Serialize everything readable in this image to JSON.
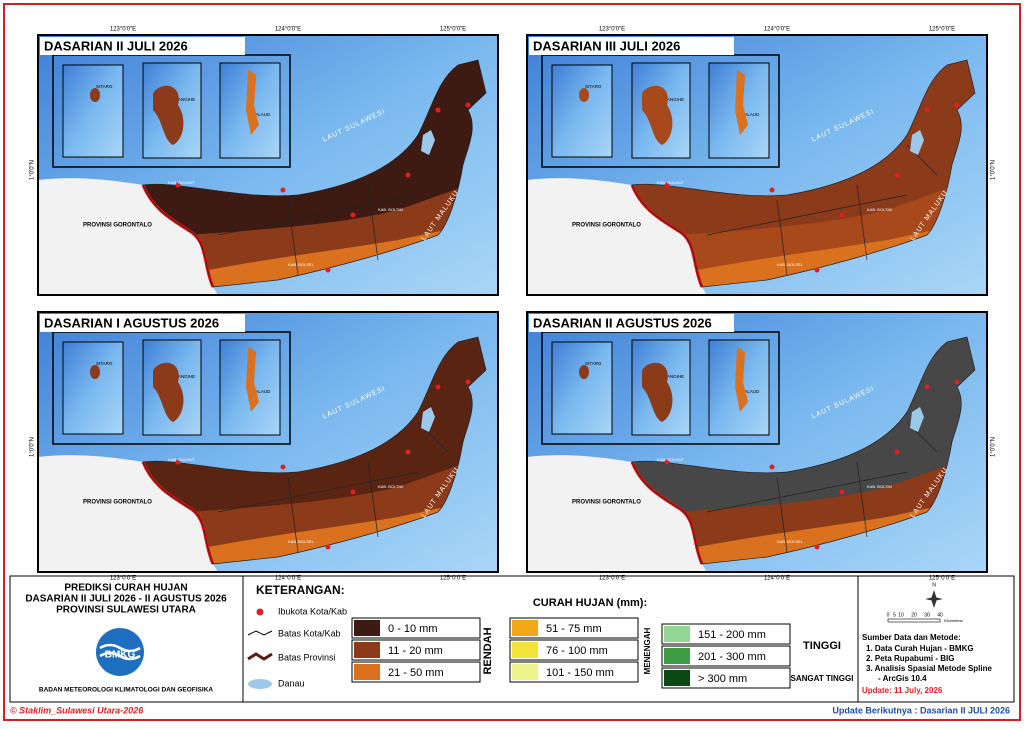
{
  "panels": [
    {
      "title": "DASARIAN II JULI 2026"
    },
    {
      "title": "DASARIAN III JULI 2026"
    },
    {
      "title": "DASARIAN I AGUSTUS 2026"
    },
    {
      "title": "DASARIAN II AGUSTUS 2026"
    }
  ],
  "coordinates": {
    "longitudes": [
      "123°0'0\"E",
      "124°0'0\"E",
      "125°0'0\"E"
    ],
    "latitude": "1°0'0\"N"
  },
  "map_labels": {
    "inset": [
      "SITARO",
      "SANGIHE",
      "TALAUD"
    ],
    "seas": [
      "LAUT SULAWESI",
      "LAUT MALUKU"
    ],
    "province": "PROVINSI GORONTALO",
    "regencies": [
      "KAB. BOLMUT",
      "KAB. BOLTIM",
      "KAB. BOLSEL"
    ]
  },
  "title_block": {
    "lines": [
      "PREDIKSI CURAH HUJAN",
      "DASARIAN II JULI 2026 - II AGUSTUS 2026",
      "PROVINSI SULAWESI UTARA"
    ],
    "logo": "BMKG",
    "agency": "BADAN METEOROLOGI KLIMATOLOGI DAN GEOFISIKA"
  },
  "legend": {
    "title": "KETERANGAN:",
    "items": [
      "Ibukota Kota/Kab",
      "Batas Kota/Kab",
      "Batas Provinsi",
      "Danau"
    ],
    "rainfall_title": "CURAH HUJAN (mm):",
    "groups": [
      {
        "name": "RENDAH",
        "classes": [
          {
            "label": "0 - 10 mm",
            "color": "#3d1a12"
          },
          {
            "label": "11 - 20 mm",
            "color": "#8b3a1a"
          },
          {
            "label": "21 - 50 mm",
            "color": "#d9711f"
          }
        ]
      },
      {
        "name": "MENENGAH",
        "classes": [
          {
            "label": "51 - 75 mm",
            "color": "#f0a818"
          },
          {
            "label": "76 - 100 mm",
            "color": "#f2e23a"
          },
          {
            "label": "101 - 150 mm",
            "color": "#eef58e"
          }
        ]
      },
      {
        "name": "TINGGI",
        "classes": [
          {
            "label": "151 - 200 mm",
            "color": "#93d593"
          },
          {
            "label": "201 - 300 mm",
            "color": "#3f9e45"
          }
        ]
      },
      {
        "name": "SANGAT TINGGI",
        "classes": [
          {
            "label": "> 300 mm",
            "color": "#0a4a12"
          }
        ]
      }
    ]
  },
  "scale": {
    "ticks": [
      0,
      5,
      10,
      20,
      30,
      40
    ],
    "unit": "Kilometers",
    "north": "N"
  },
  "sources": {
    "title": "Sumber Data dan Metode:",
    "lines": [
      "1. Data Curah Hujan - BMKG",
      "2. Peta Rupabumi - BIG",
      "3. Analisis Spasial Metode Spline",
      "- ArcGis 10.4"
    ]
  },
  "update": "Update: 11 July, 2026",
  "footer": {
    "left": "© Staklim_Sulawesi Utara-2026",
    "right": "Update Berikutnya : Dasarian II JULI 2026"
  }
}
